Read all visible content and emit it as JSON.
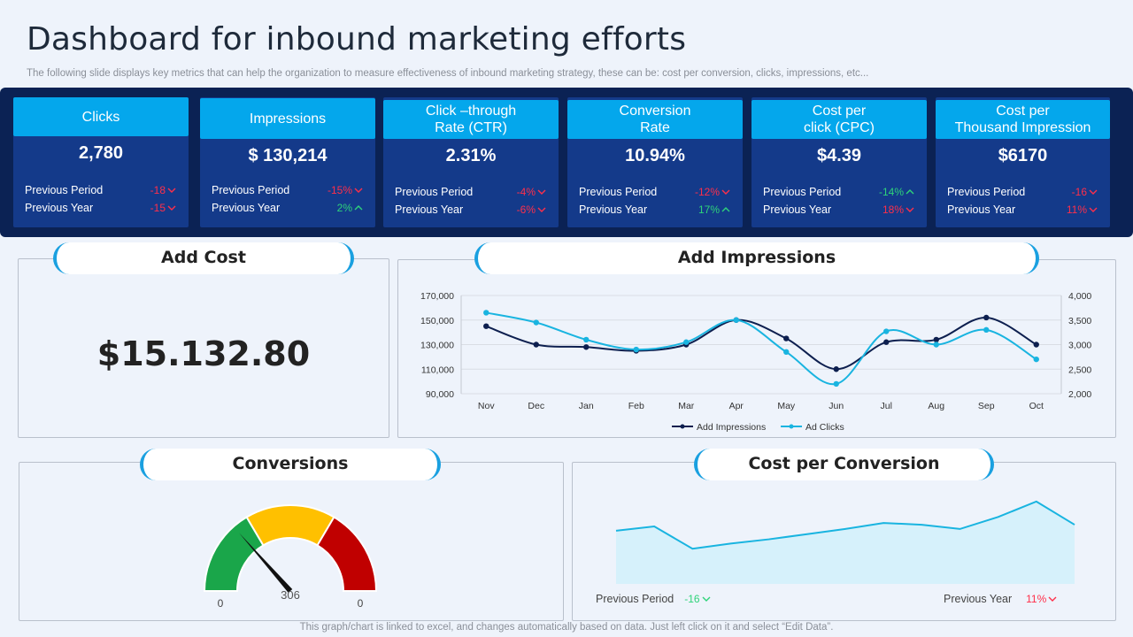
{
  "header": {
    "title": "Dashboard for inbound marketing efforts",
    "subtitle": "The following slide displays key metrics that can help the organization to measure effectiveness of inbound marketing strategy, these can be: cost per conversion, clicks, impressions, etc..."
  },
  "kpis": [
    {
      "label": "Clicks",
      "value": "2,780",
      "prev_period_label": "Previous Period",
      "prev_period": "-18",
      "prev_period_dir": "down",
      "prev_year_label": "Previous Year",
      "prev_year": "-15",
      "prev_year_dir": "down"
    },
    {
      "label": "Impressions",
      "value": "$ 130,214",
      "prev_period_label": "Previous Period",
      "prev_period": "-15%",
      "prev_period_dir": "down",
      "prev_year_label": "Previous Year",
      "prev_year": "2%",
      "prev_year_dir": "up"
    },
    {
      "label": "Click –through\nRate (CTR)",
      "value": "2.31%",
      "prev_period_label": "Previous Period",
      "prev_period": "-4%",
      "prev_period_dir": "down",
      "prev_year_label": "Previous Year",
      "prev_year": "-6%",
      "prev_year_dir": "down"
    },
    {
      "label": "Conversion\nRate",
      "value": "10.94%",
      "prev_period_label": "Previous Period",
      "prev_period": "-12%",
      "prev_period_dir": "down",
      "prev_year_label": "Previous Year",
      "prev_year": "17%",
      "prev_year_dir": "up"
    },
    {
      "label": "Cost per\nclick (CPC)",
      "value": "$4.39",
      "prev_period_label": "Previous Period",
      "prev_period": "-14%",
      "prev_period_dir": "up",
      "prev_year_label": "Previous Year",
      "prev_year": "18%",
      "prev_year_dir": "down"
    },
    {
      "label": "Cost per\nThousand Impression",
      "value": "$6170",
      "prev_period_label": "Previous Period",
      "prev_period": "-16",
      "prev_period_dir": "down",
      "prev_year_label": "Previous Year",
      "prev_year": "11%",
      "prev_year_dir": "down"
    }
  ],
  "add_cost": {
    "title": "Add Cost",
    "value": "$15.132.80"
  },
  "impressions_panel": {
    "title": "Add Impressions"
  },
  "conversions_panel": {
    "title": "Conversions"
  },
  "cpc_panel": {
    "title": "Cost per Conversion",
    "prev_period_label": "Previous Period",
    "prev_period": "-16",
    "prev_period_dir": "down",
    "prev_year_label": "Previous Year",
    "prev_year": "11%",
    "prev_year_dir": "down"
  },
  "footer": "This graph/chart is linked to excel,  and changes automatically based on data. Just left click on it and select “Edit Data”.",
  "colors": {
    "band": "#0b2254",
    "card": "#143a8a",
    "accent": "#04a7ec",
    "negative": "#ff2f4a",
    "positive": "#2ed37a",
    "series_dark": "#0d1f4f",
    "series_light": "#19b4e0"
  },
  "chart_data": [
    {
      "type": "line",
      "title": "Add Impressions",
      "categories": [
        "Nov",
        "Dec",
        "Jan",
        "Feb",
        "Mar",
        "Apr",
        "May",
        "Jun",
        "Jul",
        "Aug",
        "Sep",
        "Oct"
      ],
      "y_left": {
        "min": 90000,
        "max": 170000,
        "ticks": [
          "90,000",
          "110,000",
          "130,000",
          "150,000",
          "170,000"
        ]
      },
      "y_right": {
        "min": 2000,
        "max": 4000,
        "ticks": [
          "2,000",
          "2,500",
          "3,000",
          "3,500",
          "4,000"
        ]
      },
      "series": [
        {
          "name": "Add Impressions",
          "axis": "left",
          "values": [
            145000,
            130000,
            128000,
            125000,
            130000,
            150000,
            135000,
            110000,
            132000,
            134000,
            152000,
            130000
          ]
        },
        {
          "name": "Ad Clicks",
          "axis": "right",
          "values": [
            3650,
            3450,
            3100,
            2900,
            3050,
            3500,
            2850,
            2200,
            3270,
            3000,
            3300,
            2700
          ]
        }
      ],
      "grid": true,
      "legend": "bottom"
    },
    {
      "type": "gauge",
      "min_label": "0",
      "max_label": "0",
      "value_label": "306",
      "segments": [
        {
          "color": "#1aa64a",
          "share": 0.33
        },
        {
          "color": "#ffc000",
          "share": 0.34
        },
        {
          "color": "#c00000",
          "share": 0.33
        }
      ],
      "needle_fraction": 0.27
    },
    {
      "type": "area",
      "series": [
        {
          "values": [
            62,
            67,
            41,
            47,
            52,
            58,
            64,
            71,
            69,
            64,
            78,
            96,
            69
          ]
        }
      ]
    }
  ]
}
